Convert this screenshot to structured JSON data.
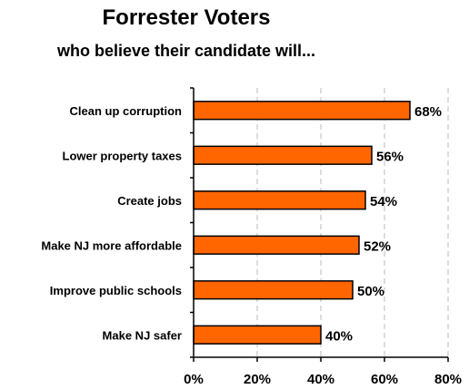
{
  "chart_data": {
    "type": "bar",
    "orientation": "horizontal",
    "title": "Forrester Voters",
    "subtitle": "who believe their candidate will...",
    "categories": [
      "Clean up corruption",
      "Lower property taxes",
      "Create jobs",
      "Make NJ more affordable",
      "Improve public schools",
      "Make NJ safer"
    ],
    "values": [
      68,
      56,
      54,
      52,
      50,
      40
    ],
    "value_labels": [
      "68%",
      "56%",
      "54%",
      "52%",
      "50%",
      "40%"
    ],
    "xlim": [
      0,
      80
    ],
    "xticks": [
      0,
      20,
      40,
      60,
      80
    ],
    "xtick_labels": [
      "0%",
      "20%",
      "40%",
      "60%",
      "80%"
    ],
    "grid": "vertical-dashed",
    "legend": "none",
    "bar_color": "#ff6600",
    "bar_edge_color": "#000000"
  }
}
